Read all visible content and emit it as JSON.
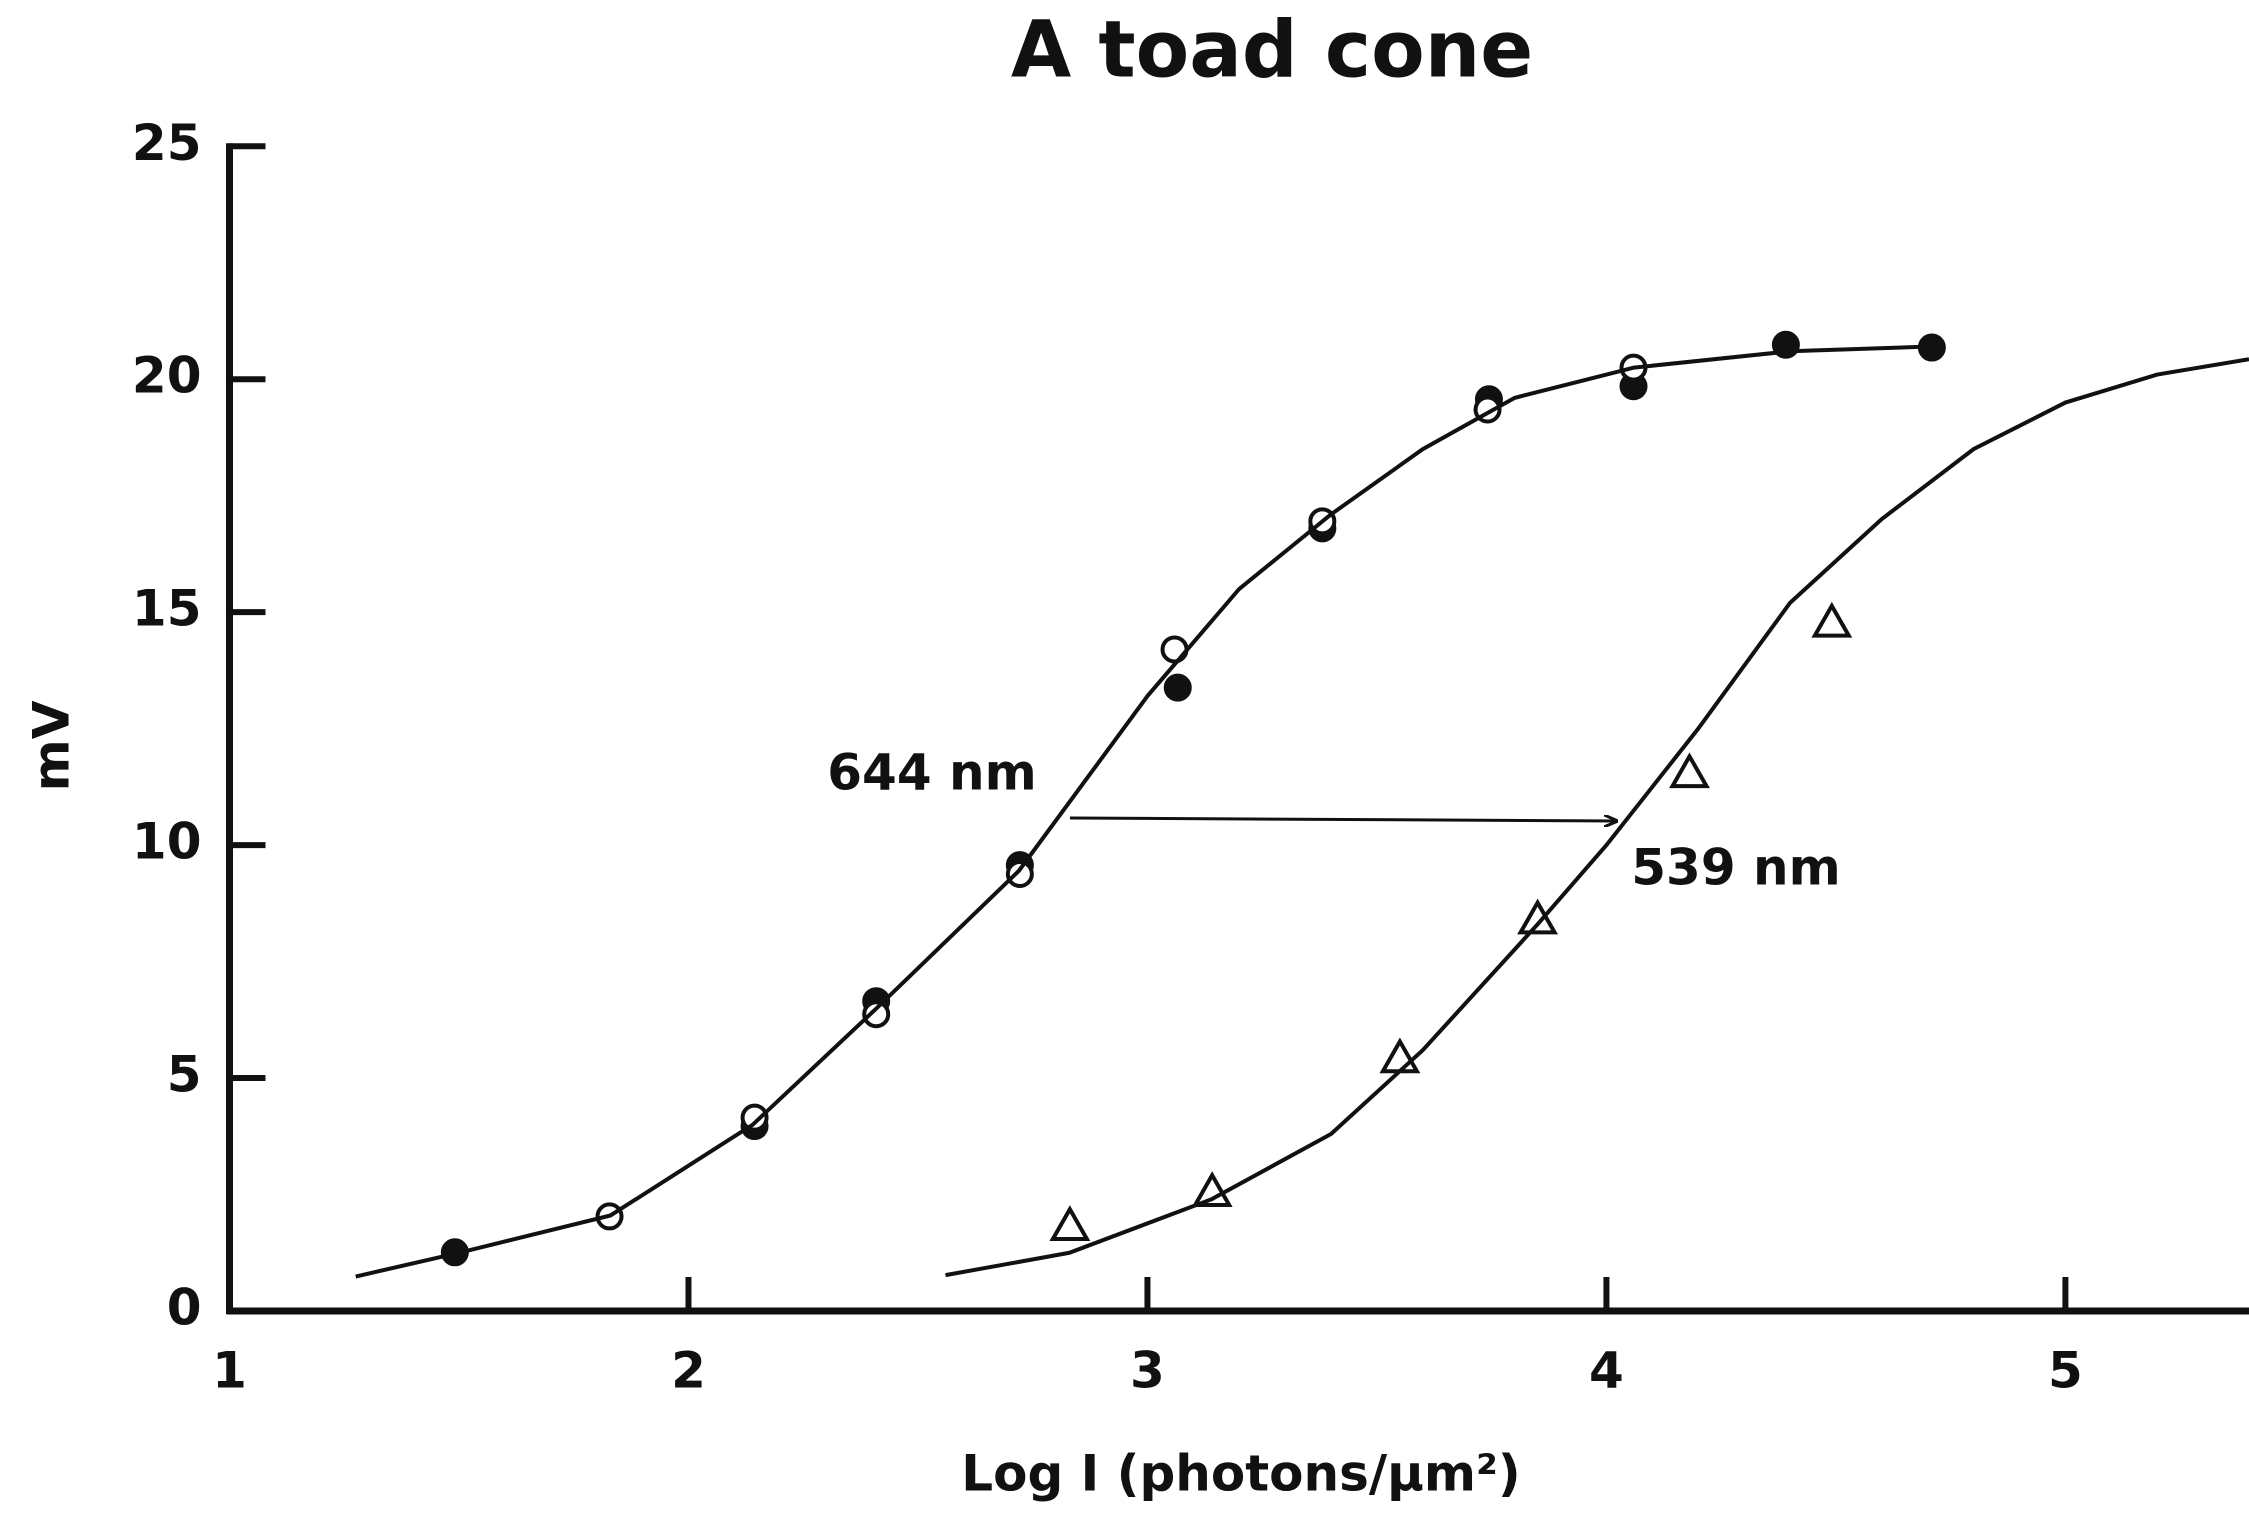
{
  "chart_data": {
    "type": "scatter",
    "title": "A toad cone",
    "title_color": "#1e9be9",
    "xlabel": "Log I (photons/μm²)",
    "ylabel": "mV",
    "xlim": [
      1,
      5.4
    ],
    "ylim": [
      0,
      25
    ],
    "xticks": [
      1,
      2,
      3,
      4,
      5
    ],
    "yticks": [
      0,
      5,
      10,
      15,
      20,
      25
    ],
    "annotations": [
      "644 nm",
      "539 nm"
    ],
    "series": [
      {
        "marker": "circle-filled",
        "color": "#111111",
        "x": [
          1.491,
          2.144,
          2.409,
          2.722,
          3.066,
          3.381,
          3.744,
          4.059,
          4.391,
          4.709
        ],
        "values": [
          1.26,
          3.97,
          6.65,
          9.57,
          13.38,
          16.8,
          19.57,
          19.85,
          20.74,
          20.68
        ]
      },
      {
        "marker": "circle-open",
        "color": "#111111",
        "x": [
          1.828,
          2.144,
          2.409,
          2.722,
          3.059,
          3.381,
          3.741,
          4.059
        ],
        "values": [
          2.03,
          4.15,
          6.37,
          9.38,
          14.2,
          16.95,
          19.35,
          20.25
        ]
      },
      {
        "marker": "triangle-open",
        "color": "#111111",
        "x": [
          2.831,
          3.141,
          3.55,
          3.85,
          4.181,
          4.491
        ],
        "values": [
          1.82,
          2.55,
          5.42,
          8.4,
          11.54,
          14.77
        ]
      },
      {
        "marker": "line",
        "color": "#111111",
        "x": [
          1.275,
          1.5,
          1.83,
          2.14,
          2.41,
          2.72,
          3.0,
          3.2,
          3.4,
          3.6,
          3.8,
          4.06,
          4.4,
          4.7
        ],
        "values": [
          0.74,
          1.25,
          2.05,
          4.0,
          6.5,
          9.45,
          13.2,
          15.5,
          17.1,
          18.5,
          19.6,
          20.25,
          20.6,
          20.7
        ]
      },
      {
        "marker": "line",
        "color": "#111111",
        "x": [
          2.56,
          2.83,
          3.14,
          3.4,
          3.6,
          3.85,
          4.0,
          4.2,
          4.4,
          4.6,
          4.8,
          5.0,
          5.2,
          5.4
        ],
        "values": [
          0.77,
          1.25,
          2.4,
          3.8,
          5.6,
          8.3,
          10.0,
          12.5,
          15.2,
          17.0,
          18.5,
          19.5,
          20.1,
          20.43
        ]
      }
    ]
  }
}
